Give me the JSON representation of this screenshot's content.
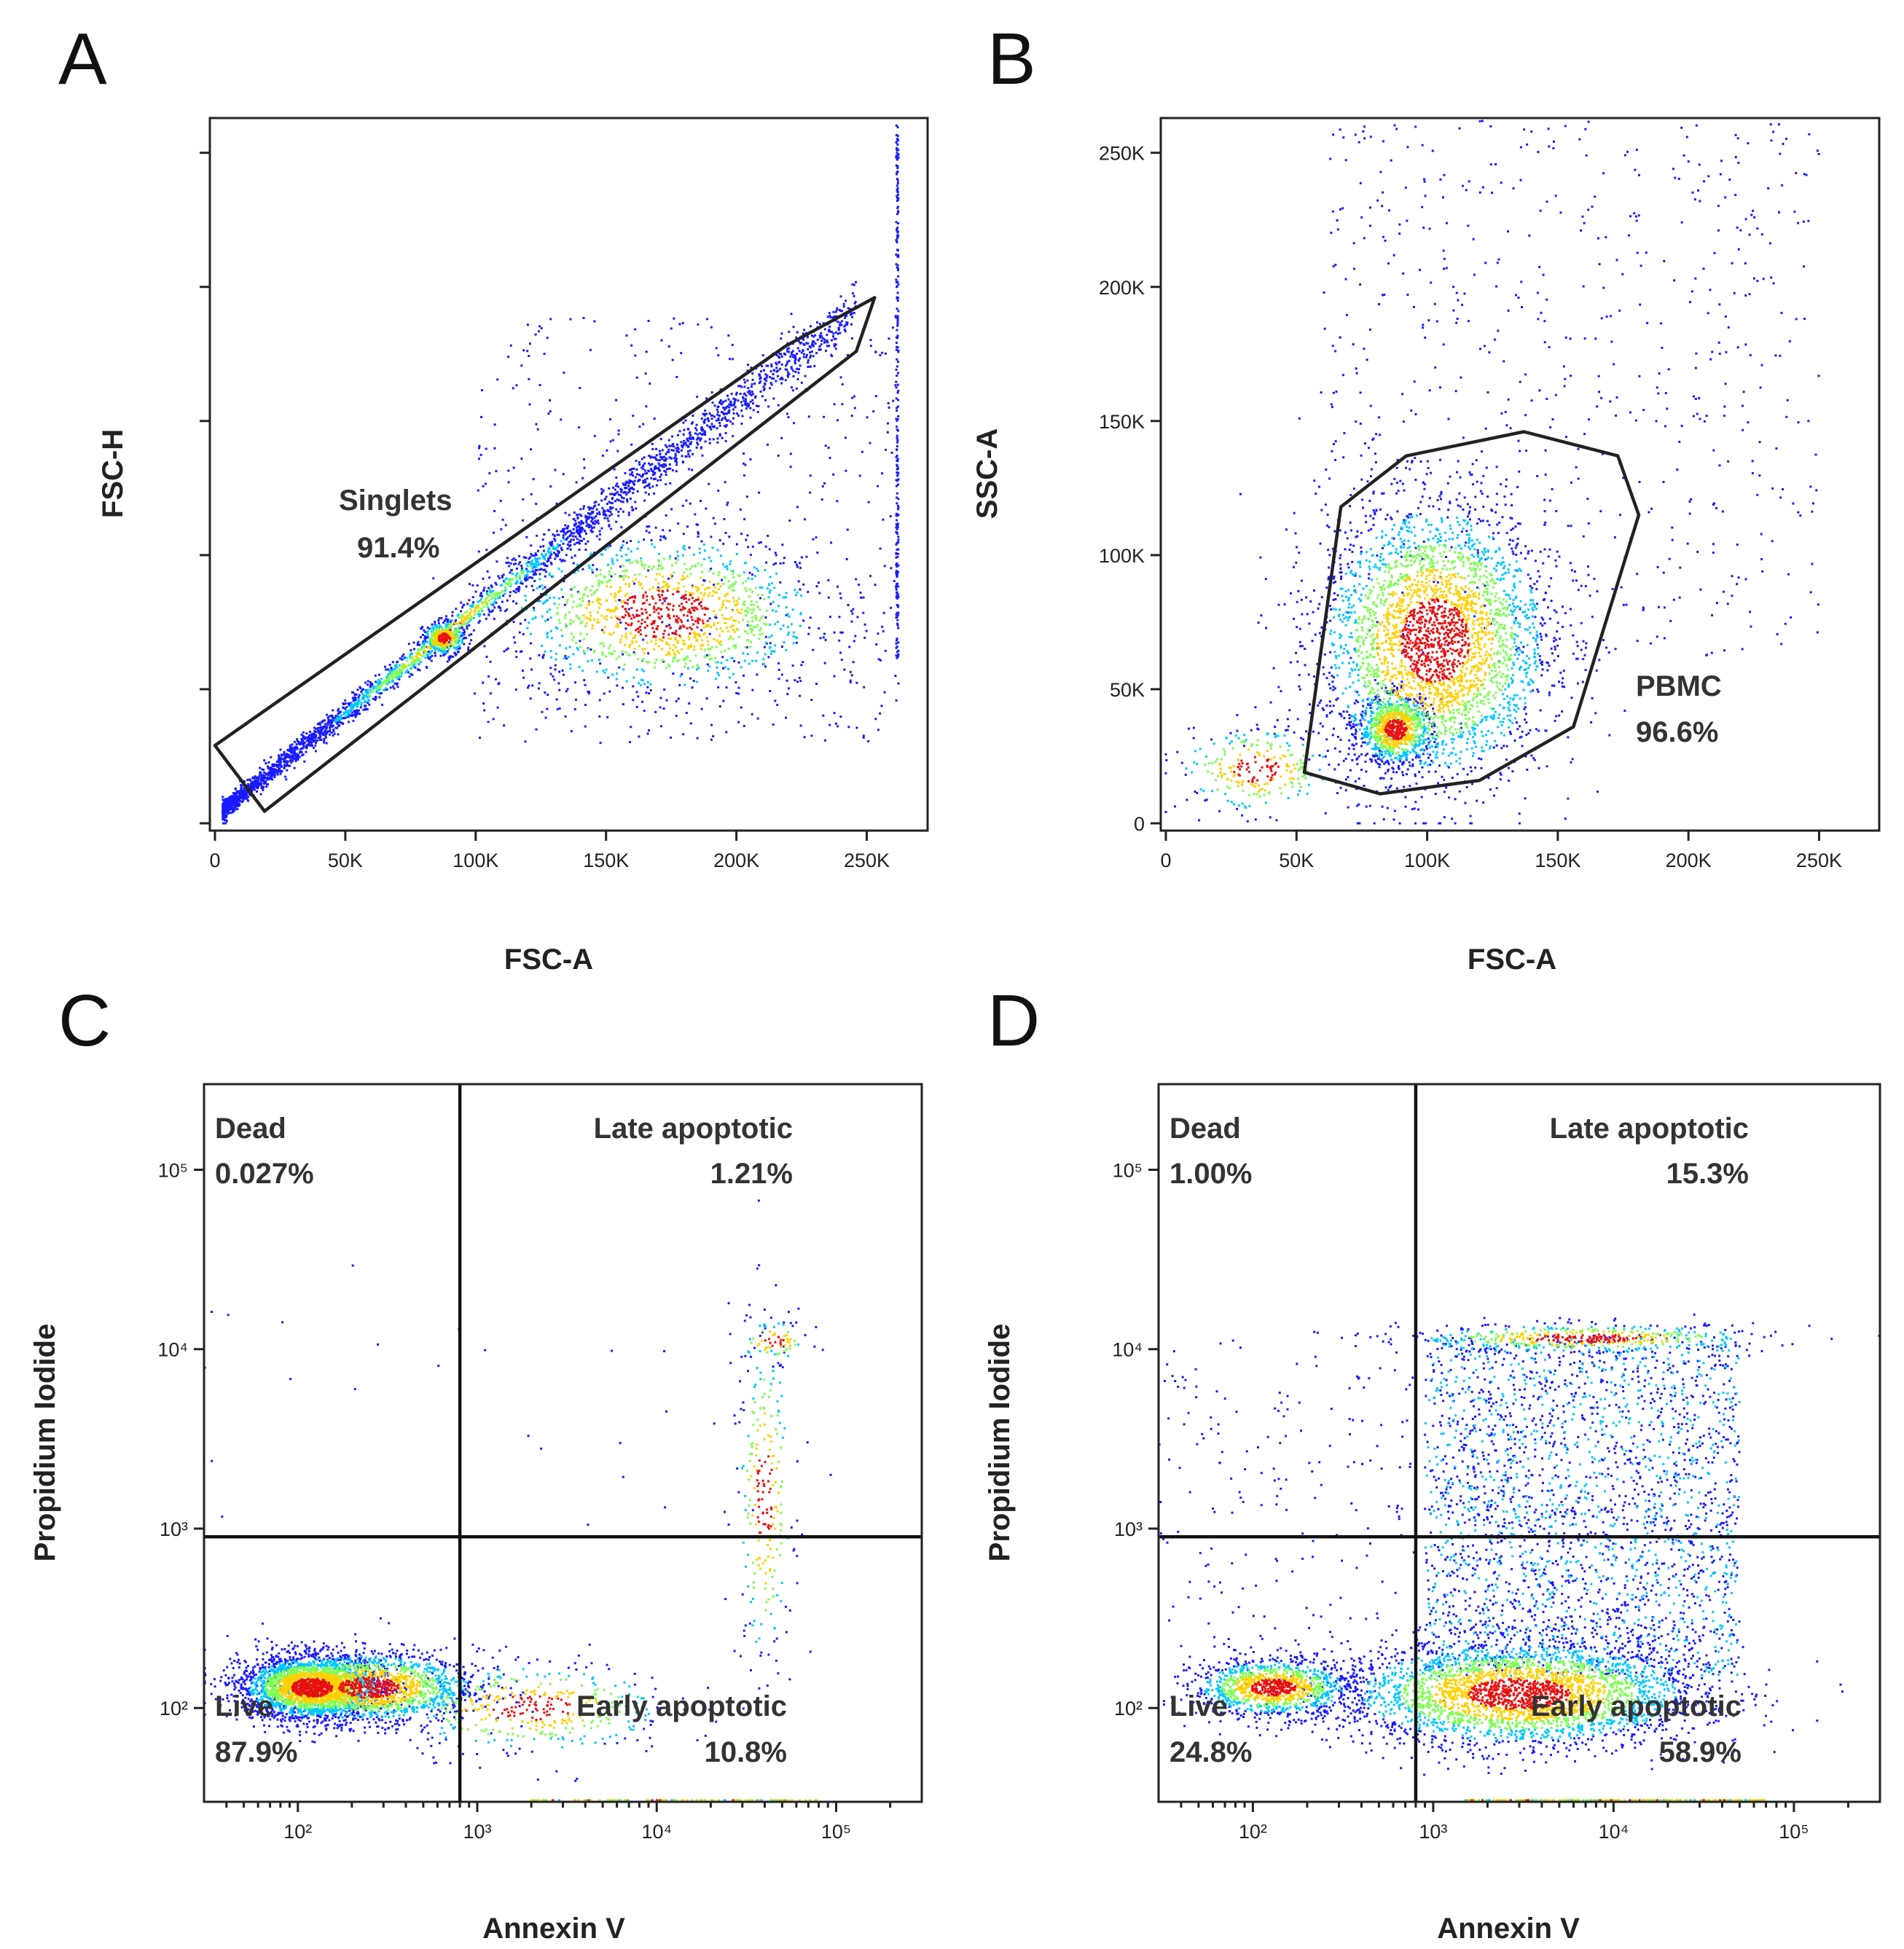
{
  "colors": {
    "sparse": "#1a1aff",
    "dense_low": "#00c8ff",
    "dense_mid": "#7cff50",
    "dense_high": "#ffd000",
    "peak": "#e81010"
  },
  "chart_data": [
    {
      "panel": "A",
      "type": "scatter",
      "xlabel": "FSC-A",
      "ylabel": "FSC-H",
      "xlim": [
        0,
        262144
      ],
      "ylim": [
        0,
        262144
      ],
      "xticks": [
        "0",
        "50K",
        "100K",
        "150K",
        "200K",
        "250K"
      ],
      "xtick_values": [
        0,
        50000,
        100000,
        150000,
        200000,
        250000
      ],
      "yticks": [],
      "ytick_values": [
        0,
        50000,
        100000,
        150000,
        200000,
        250000
      ],
      "gate": {
        "name": "Singlets",
        "percent": "91.4%",
        "vertices": [
          [
            0,
            29000
          ],
          [
            19000,
            4500
          ],
          [
            246000,
            176000
          ],
          [
            253000,
            196000
          ],
          [
            219000,
            178000
          ]
        ]
      },
      "populations": [
        {
          "kind": "diagonal",
          "x_range": [
            3000,
            246000
          ],
          "slope": 0.77,
          "intercept": 2500,
          "sd": 1800,
          "count": 2800
        },
        {
          "kind": "cluster",
          "cx": 172000,
          "cy": 78000,
          "sx": 30000,
          "sy": 15000,
          "count": 1300
        },
        {
          "kind": "cluster",
          "cx": 88000,
          "cy": 69000,
          "sx": 4000,
          "sy": 3000,
          "count": 350
        },
        {
          "kind": "scatter",
          "x_range": [
            100000,
            262000
          ],
          "y_range": [
            30000,
            190000
          ],
          "count": 550
        },
        {
          "kind": "edge",
          "x": 262144,
          "y_range": [
            60000,
            262000
          ],
          "count": 250
        }
      ]
    },
    {
      "panel": "B",
      "type": "scatter",
      "xlabel": "FSC-A",
      "ylabel": "SSC-A",
      "xlim": [
        0,
        262144
      ],
      "ylim": [
        0,
        262144
      ],
      "xticks": [
        "0",
        "50K",
        "100K",
        "150K",
        "200K",
        "250K"
      ],
      "xtick_values": [
        0,
        50000,
        100000,
        150000,
        200000,
        250000
      ],
      "yticks": [
        "0",
        "50K",
        "100K",
        "150K",
        "200K",
        "250K"
      ],
      "ytick_values": [
        0,
        50000,
        100000,
        150000,
        200000,
        250000
      ],
      "gate": {
        "name": "PBMC",
        "percent": "96.6%",
        "vertices": [
          [
            53000,
            19000
          ],
          [
            67000,
            118000
          ],
          [
            92000,
            137000
          ],
          [
            137000,
            146000
          ],
          [
            173000,
            137000
          ],
          [
            181000,
            115000
          ],
          [
            156000,
            36000
          ],
          [
            120000,
            16000
          ],
          [
            82000,
            11000
          ]
        ]
      },
      "populations": [
        {
          "kind": "cluster",
          "cx": 88000,
          "cy": 35000,
          "sx": 7000,
          "sy": 6500,
          "count": 900
        },
        {
          "kind": "cluster",
          "cx": 103000,
          "cy": 68000,
          "sx": 22000,
          "sy": 26000,
          "count": 3200
        },
        {
          "kind": "cluster",
          "cx": 35000,
          "cy": 20000,
          "sx": 15000,
          "sy": 8000,
          "count": 280
        },
        {
          "kind": "scatter",
          "x_range": [
            60000,
            250000
          ],
          "y_range": [
            60000,
            262000
          ],
          "count": 650
        }
      ]
    },
    {
      "panel": "C",
      "type": "scatter",
      "xlabel": "Annexin V",
      "ylabel": "Propidium Iodide",
      "xscale": "log",
      "yscale": "log",
      "xlim": [
        30,
        300000
      ],
      "ylim": [
        30,
        300000
      ],
      "xticks": [
        "10²",
        "10³",
        "10⁴",
        "10⁵"
      ],
      "xtick_values": [
        100,
        1000,
        10000,
        100000
      ],
      "yticks": [
        "10²",
        "10³",
        "10⁴",
        "10⁵"
      ],
      "ytick_values": [
        100,
        1000,
        10000,
        100000
      ],
      "quadrant_gate": {
        "x": 800,
        "y": 900
      },
      "quadrants": [
        {
          "name": "Dead",
          "percent": "0.027%"
        },
        {
          "name": "Late apoptotic",
          "percent": "1.21%"
        },
        {
          "name": "Live",
          "percent": "87.9%"
        },
        {
          "name": "Early apoptotic",
          "percent": "10.8%"
        }
      ],
      "populations": [
        {
          "kind": "cluster_log",
          "cx": 120,
          "cy": 130,
          "sx": 0.2,
          "sy": 0.09,
          "count": 2400
        },
        {
          "kind": "cluster_log",
          "cx": 250,
          "cy": 130,
          "sx": 0.3,
          "sy": 0.1,
          "count": 1600
        },
        {
          "kind": "cluster_log",
          "cx": 2000,
          "cy": 100,
          "sx": 0.4,
          "sy": 0.13,
          "count": 450
        },
        {
          "kind": "cluster_log",
          "cx": 40000,
          "cy": 1500,
          "sx": 0.08,
          "sy": 0.5,
          "count": 260
        },
        {
          "kind": "cluster_log",
          "cx": 45000,
          "cy": 11000,
          "sx": 0.1,
          "sy": 0.06,
          "count": 70
        },
        {
          "kind": "bottom_band",
          "x_range": [
            2000,
            80000
          ],
          "count": 120
        },
        {
          "kind": "scatter_log",
          "x_range": [
            30,
            100000
          ],
          "y_range": [
            1000,
            30000
          ],
          "count": 30
        }
      ]
    },
    {
      "panel": "D",
      "type": "scatter",
      "xlabel": "Annexin V",
      "ylabel": "Propidium Iodide",
      "xscale": "log",
      "yscale": "log",
      "xlim": [
        30,
        300000
      ],
      "ylim": [
        30,
        300000
      ],
      "xticks": [
        "10²",
        "10³",
        "10⁴",
        "10⁵"
      ],
      "xtick_values": [
        100,
        1000,
        10000,
        100000
      ],
      "yticks": [
        "10²",
        "10³",
        "10⁴",
        "10⁵"
      ],
      "ytick_values": [
        100,
        1000,
        10000,
        100000
      ],
      "quadrant_gate": {
        "x": 800,
        "y": 900
      },
      "quadrants": [
        {
          "name": "Dead",
          "percent": "1.00%"
        },
        {
          "name": "Late apoptotic",
          "percent": "15.3%"
        },
        {
          "name": "Live",
          "percent": "24.8%"
        },
        {
          "name": "Early apoptotic",
          "percent": "58.9%"
        }
      ],
      "populations": [
        {
          "kind": "cluster_log",
          "cx": 130,
          "cy": 130,
          "sx": 0.22,
          "sy": 0.08,
          "count": 1200
        },
        {
          "kind": "cluster_log",
          "cx": 3000,
          "cy": 120,
          "sx": 0.5,
          "sy": 0.15,
          "count": 3200
        },
        {
          "kind": "uniform_log",
          "x_range": [
            900,
            50000
          ],
          "y_range": [
            150,
            12000
          ],
          "count": 2600
        },
        {
          "kind": "cluster_log",
          "cx": 7000,
          "cy": 11500,
          "sx": 0.5,
          "sy": 0.04,
          "count": 500
        },
        {
          "kind": "bottom_band",
          "x_range": [
            1500,
            70000
          ],
          "count": 240
        },
        {
          "kind": "scatter_log",
          "x_range": [
            30,
            800
          ],
          "y_range": [
            200,
            12000
          ],
          "count": 180
        }
      ]
    }
  ]
}
